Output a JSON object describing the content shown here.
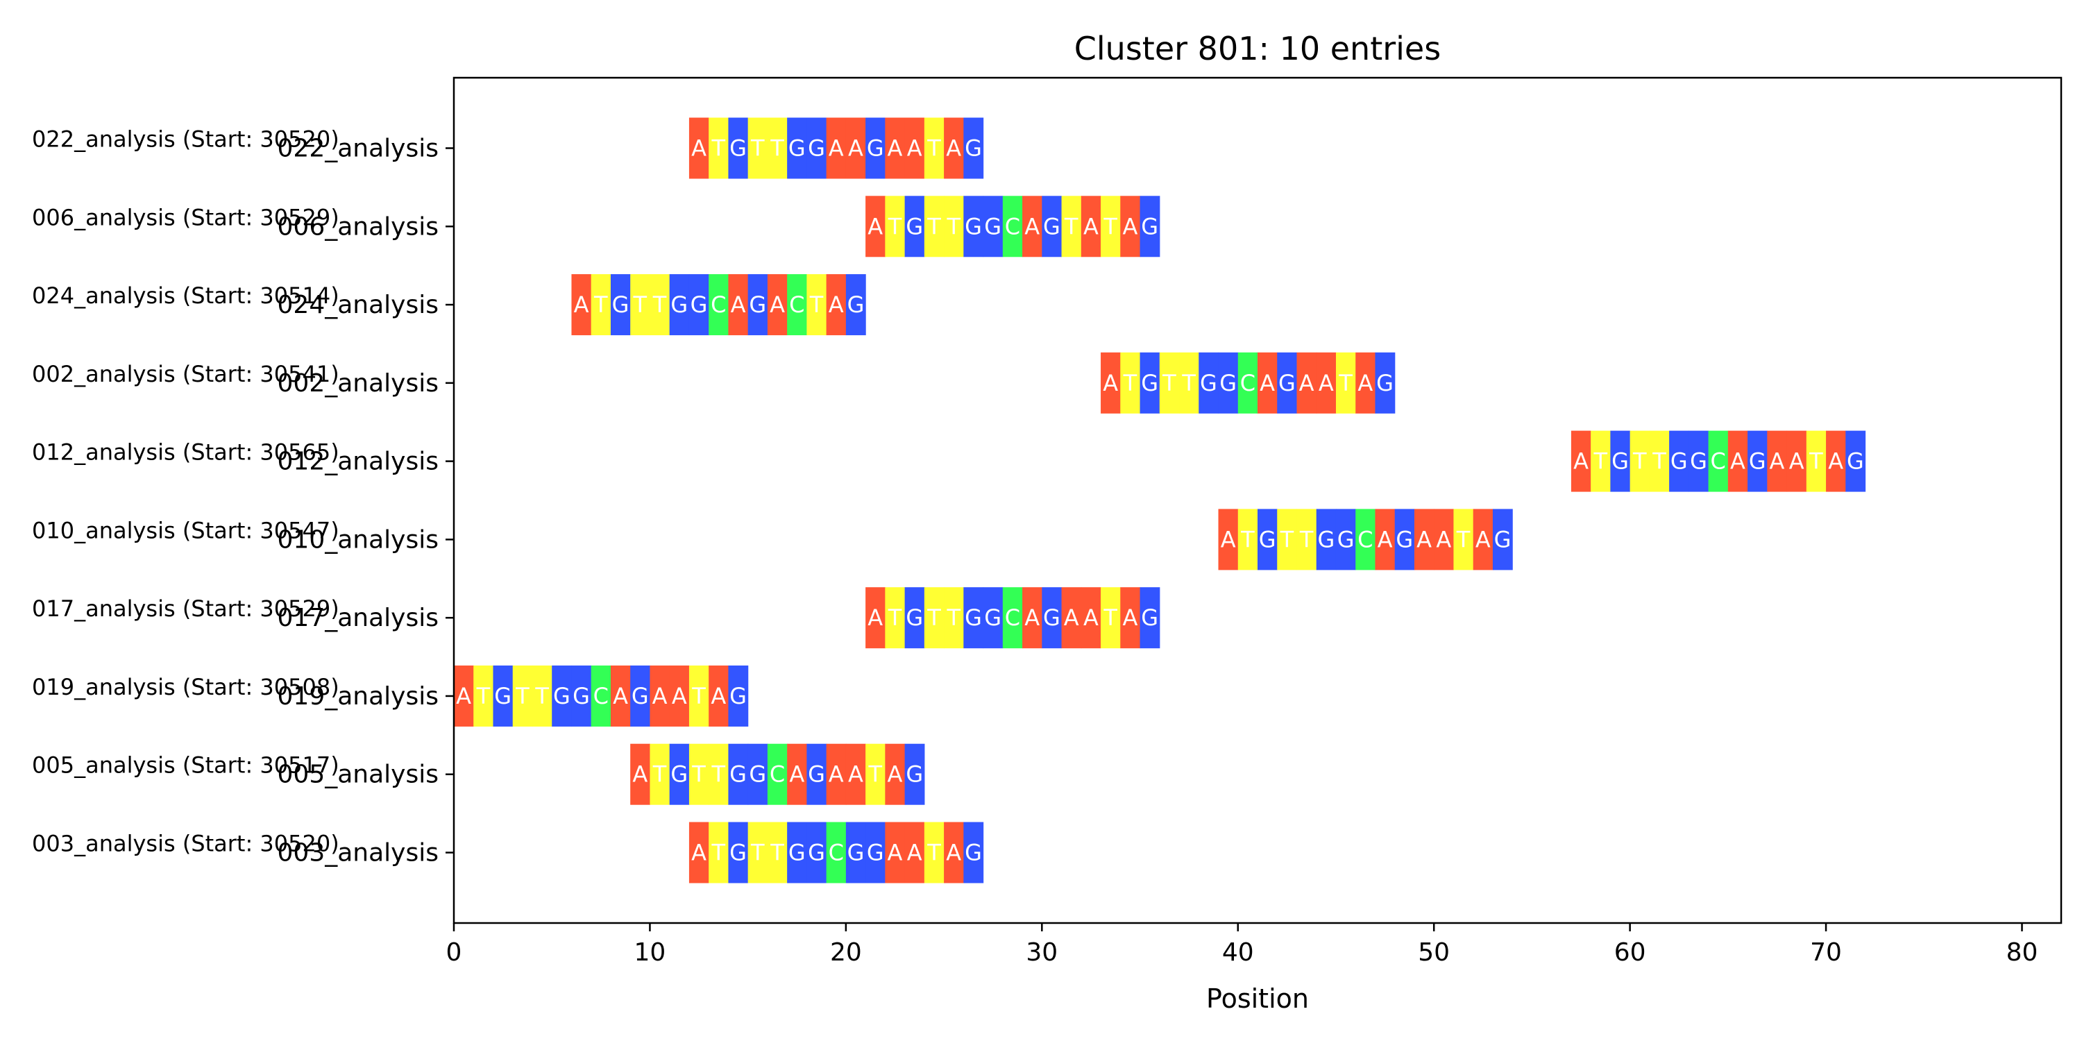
{
  "chart_data": {
    "type": "bar",
    "title": "Cluster 801: 10 entries",
    "xlabel": "Position",
    "ylabel": "",
    "xlim": [
      0,
      82
    ],
    "xticks": [
      0,
      10,
      20,
      30,
      40,
      50,
      60,
      70,
      80
    ],
    "grid": false,
    "base_colors": {
      "A": "#ff5533",
      "T": "#ffff33",
      "G": "#3355ff",
      "C": "#33ff55"
    },
    "rows": [
      {
        "side_label": "022_analysis (Start: 30520)",
        "tick_label": "022_analysis",
        "start": 12,
        "sequence": "ATGTTGGAAGAATAG"
      },
      {
        "side_label": "006_analysis (Start: 30529)",
        "tick_label": "006_analysis",
        "start": 21,
        "sequence": "ATGTTGGCAGTATAG"
      },
      {
        "side_label": "024_analysis (Start: 30514)",
        "tick_label": "024_analysis",
        "start": 6,
        "sequence": "ATGTTGGCAGACTAG"
      },
      {
        "side_label": "002_analysis (Start: 30541)",
        "tick_label": "002_analysis",
        "start": 33,
        "sequence": "ATGTTGGCAGAATAG"
      },
      {
        "side_label": "012_analysis (Start: 30565)",
        "tick_label": "012_analysis",
        "start": 57,
        "sequence": "ATGTTGGCAGAATAG"
      },
      {
        "side_label": "010_analysis (Start: 30547)",
        "tick_label": "010_analysis",
        "start": 39,
        "sequence": "ATGTTGGCAGAATAG"
      },
      {
        "side_label": "017_analysis (Start: 30529)",
        "tick_label": "017_analysis",
        "start": 21,
        "sequence": "ATGTTGGCAGAATAG"
      },
      {
        "side_label": "019_analysis (Start: 30508)",
        "tick_label": "019_analysis",
        "start": 0,
        "sequence": "ATGTTGGCAGAATAG"
      },
      {
        "side_label": "005_analysis (Start: 30517)",
        "tick_label": "005_analysis",
        "start": 9,
        "sequence": "ATGTTGGCAGAATAG"
      },
      {
        "side_label": "003_analysis (Start: 30520)",
        "tick_label": "003_analysis",
        "start": 12,
        "sequence": "ATGTTGGCGGAATAG"
      }
    ]
  }
}
